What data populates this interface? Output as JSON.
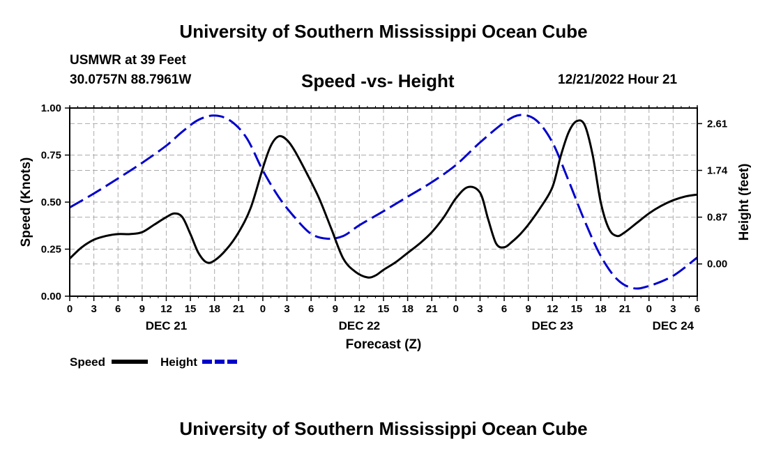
{
  "header": {
    "title": "University of Southern Mississippi Ocean Cube",
    "station": "USMWR at 39 Feet",
    "coords": "30.0757N  88.7961W",
    "subtitle": "Speed -vs- Height",
    "datetime": "12/21/2022 Hour 21",
    "footer_title": "University of Southern Mississippi Ocean Cube"
  },
  "chart_data": {
    "type": "line",
    "title": "Speed -vs- Height",
    "xlabel": "Forecast (Z)",
    "ylabel": "Speed (Knots)",
    "y2label": "Height (feet)",
    "xlim": [
      0,
      78
    ],
    "ylim": [
      0,
      1.0
    ],
    "y2lim": [
      -0.6,
      2.9
    ],
    "x_ticks": [
      0,
      3,
      6,
      9,
      12,
      15,
      18,
      21,
      24,
      27,
      30,
      33,
      36,
      39,
      42,
      45,
      48,
      51,
      54,
      57,
      60,
      63,
      66,
      69,
      72,
      75,
      78
    ],
    "x_tick_labels": [
      "0",
      "3",
      "6",
      "9",
      "12",
      "15",
      "18",
      "21",
      "0",
      "3",
      "6",
      "9",
      "12",
      "15",
      "18",
      "21",
      "0",
      "3",
      "6",
      "9",
      "12",
      "15",
      "18",
      "21",
      "0",
      "3",
      "6"
    ],
    "day_labels": [
      {
        "label": "DEC 21",
        "x": 12
      },
      {
        "label": "DEC 22",
        "x": 36
      },
      {
        "label": "DEC 23",
        "x": 60
      },
      {
        "label": "DEC 24",
        "x": 75
      }
    ],
    "y_ticks": [
      0,
      0.25,
      0.5,
      0.75,
      1.0
    ],
    "y_tick_labels": [
      "0.00",
      "0.25",
      "0.50",
      "0.75",
      "1.00"
    ],
    "y2_ticks": [
      0,
      0.87,
      1.74,
      2.61
    ],
    "y2_tick_labels": [
      "0.00",
      "0.87",
      "1.74",
      "2.61"
    ],
    "grid": true,
    "legend": [
      {
        "name": "Speed",
        "color": "#000000",
        "style": "solid"
      },
      {
        "name": "Height",
        "color": "#0000cc",
        "style": "dashed"
      }
    ],
    "series": [
      {
        "name": "Speed",
        "axis": "left",
        "color": "#000000",
        "style": "solid",
        "x": [
          0,
          1.5,
          3,
          4.5,
          6,
          7.5,
          9,
          10.5,
          12,
          13,
          14,
          15,
          16,
          17,
          18,
          19.5,
          21,
          22.5,
          24,
          25,
          26,
          27,
          28,
          29.5,
          31,
          32.5,
          34,
          35.5,
          37,
          38,
          39,
          40.5,
          42,
          43.5,
          45,
          46.5,
          48,
          49.5,
          51,
          52,
          53,
          54,
          55,
          56,
          57,
          58.5,
          60,
          61,
          62,
          63,
          64,
          65,
          66,
          67,
          68,
          69,
          70.5,
          72,
          73.5,
          75,
          76.5,
          78
        ],
        "values": [
          0.2,
          0.26,
          0.3,
          0.32,
          0.33,
          0.33,
          0.34,
          0.38,
          0.42,
          0.44,
          0.42,
          0.33,
          0.23,
          0.18,
          0.19,
          0.25,
          0.34,
          0.47,
          0.68,
          0.8,
          0.85,
          0.83,
          0.77,
          0.65,
          0.52,
          0.36,
          0.2,
          0.13,
          0.1,
          0.11,
          0.14,
          0.18,
          0.23,
          0.28,
          0.34,
          0.42,
          0.52,
          0.58,
          0.55,
          0.41,
          0.28,
          0.26,
          0.29,
          0.33,
          0.38,
          0.47,
          0.58,
          0.74,
          0.87,
          0.93,
          0.91,
          0.75,
          0.5,
          0.36,
          0.32,
          0.34,
          0.39,
          0.44,
          0.48,
          0.51,
          0.53,
          0.54
        ]
      },
      {
        "name": "Height",
        "axis": "right",
        "color": "#0000cc",
        "style": "dashed",
        "x": [
          0,
          3,
          6,
          9,
          12,
          14,
          16,
          18,
          20,
          22,
          24,
          26,
          28,
          30,
          32,
          34,
          36,
          39,
          42,
          45,
          48,
          51,
          54,
          56,
          58,
          60,
          62,
          64,
          66,
          68,
          70,
          72,
          75,
          78
        ],
        "values": [
          1.05,
          1.31,
          1.59,
          1.88,
          2.2,
          2.46,
          2.68,
          2.76,
          2.66,
          2.34,
          1.74,
          1.24,
          0.86,
          0.56,
          0.47,
          0.52,
          0.72,
          0.98,
          1.25,
          1.52,
          1.84,
          2.26,
          2.63,
          2.77,
          2.67,
          2.26,
          1.55,
          0.8,
          0.15,
          -0.28,
          -0.45,
          -0.41,
          -0.22,
          0.12
        ]
      }
    ]
  }
}
